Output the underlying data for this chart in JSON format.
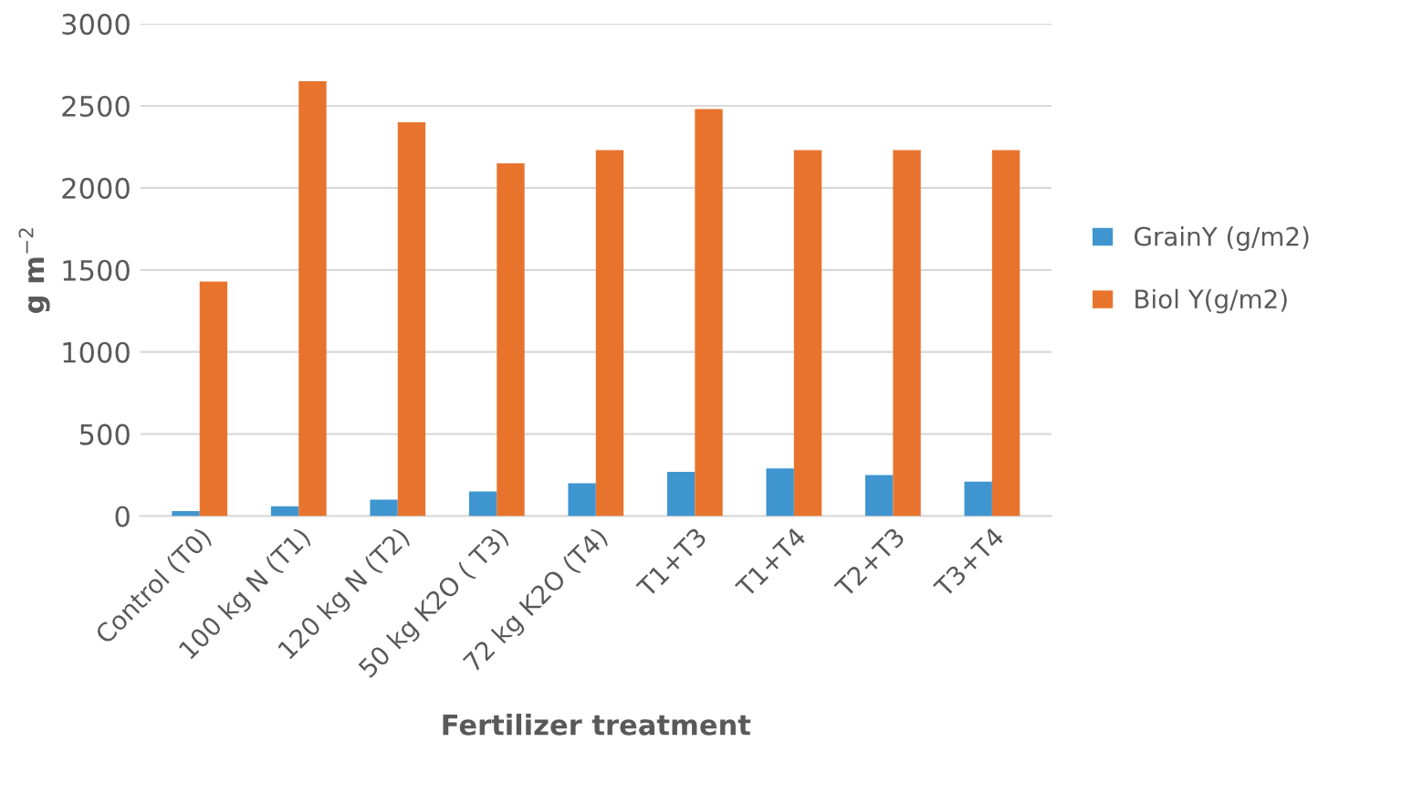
{
  "chart_data": {
    "type": "bar",
    "xlabel": "Fertilizer treatment",
    "ylabel": "g m$^{−2}$",
    "categories": [
      "Control (T0)",
      "100 kg N (T1)",
      "120 kg N (T2)",
      "50 kg K2O ( T3)",
      "72 kg K2O (T4)",
      "T1+T3",
      "T1+T4",
      "T2+T3",
      "T3+T4"
    ],
    "series": [
      {
        "name": "GrainY (g/m2)",
        "color": "#3f95cf",
        "values": [
          30,
          60,
          100,
          150,
          200,
          270,
          290,
          250,
          210
        ]
      },
      {
        "name": "Biol Y(g/m2)",
        "color": "#e8732d",
        "values": [
          1430,
          2650,
          2400,
          2150,
          2230,
          2480,
          2230,
          2230,
          2230
        ]
      }
    ],
    "ylim": [
      0,
      3000
    ],
    "yticks": [
      0,
      500,
      1000,
      1500,
      2000,
      2500,
      3000
    ],
    "grid": "y",
    "legend": "right"
  }
}
